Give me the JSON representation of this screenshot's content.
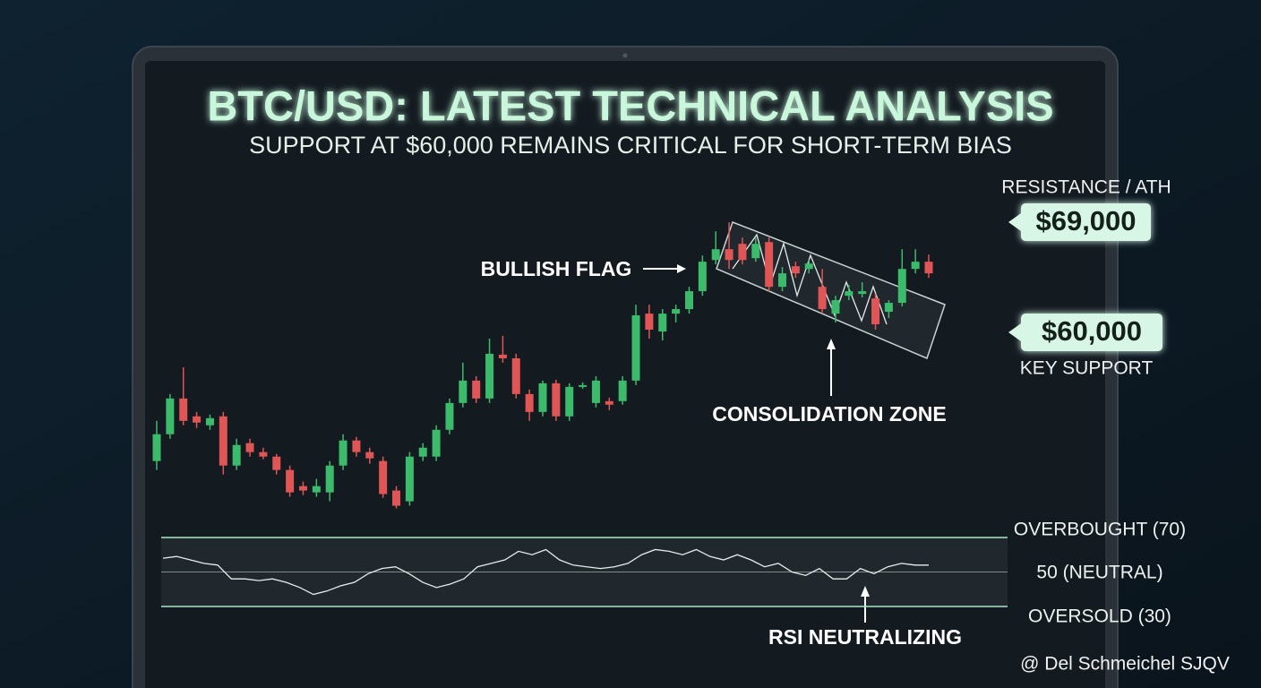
{
  "chart_data": {
    "type": "candlestick",
    "title": "BTC/USD: LATEST TECHNICAL ANALYSIS",
    "subtitle": "SUPPORT AT $60,000 REMAINS CRITICAL FOR SHORT-TERM BIAS",
    "up_color": "#3dbb6c",
    "down_color": "#e05656",
    "open": [
      49490,
      51680,
      54600,
      53140,
      52410,
      53140,
      49120,
      50950,
      50220,
      49850,
      48760,
      47440,
      46930,
      46930,
      49120,
      51170,
      50220,
      49490,
      47080,
      46200,
      49850,
      49850,
      52040,
      54230,
      56060,
      54600,
      58180,
      57880,
      54960,
      53500,
      55840,
      53140,
      55550,
      54230,
      54380,
      54380,
      56060,
      61530,
      60070,
      61530,
      61900,
      63360,
      65910,
      66790,
      67230,
      66060,
      67370,
      63720,
      65400,
      65180,
      63720,
      61530,
      62990,
      63140,
      62770,
      61680,
      62410,
      65180,
      65770
    ],
    "high": [
      52770,
      54960,
      57150,
      53500,
      53280,
      53500,
      51310,
      51310,
      50580,
      50070,
      49120,
      47810,
      48030,
      49490,
      51680,
      51460,
      50580,
      49850,
      47440,
      50220,
      50950,
      52410,
      54600,
      57520,
      56420,
      59490,
      59710,
      58250,
      55330,
      56060,
      56130,
      55840,
      55910,
      56420,
      54670,
      56420,
      62260,
      62260,
      61900,
      62260,
      63720,
      66280,
      68250,
      68980,
      67740,
      67740,
      67740,
      65330,
      65770,
      65910,
      65180,
      62990,
      63870,
      64090,
      63140,
      62630,
      66790,
      66790,
      66350
    ],
    "low": [
      48760,
      51310,
      52410,
      52190,
      52040,
      48390,
      48760,
      49850,
      49630,
      48390,
      46570,
      46710,
      46570,
      46200,
      48760,
      49850,
      49270,
      46490,
      45620,
      45840,
      49490,
      49490,
      51680,
      53870,
      54230,
      54230,
      57520,
      54600,
      52770,
      53140,
      52770,
      52770,
      55400,
      53870,
      53650,
      54090,
      55690,
      59490,
      59340,
      60800,
      61530,
      62990,
      65550,
      65180,
      65550,
      65770,
      63360,
      63360,
      64450,
      64820,
      61530,
      60800,
      62630,
      62850,
      60220,
      61170,
      62120,
      64820,
      64450
    ],
    "close": [
      51680,
      54600,
      52770,
      52630,
      52990,
      49120,
      50800,
      50220,
      49850,
      48760,
      46930,
      47080,
      47440,
      49120,
      51170,
      50220,
      49710,
      46790,
      45840,
      49850,
      50580,
      52040,
      54230,
      56060,
      54600,
      58250,
      57880,
      54960,
      53500,
      55840,
      53140,
      55550,
      55690,
      56060,
      54090,
      56060,
      61390,
      60220,
      61530,
      61900,
      63360,
      65770,
      66790,
      65910,
      65910,
      67230,
      63720,
      64820,
      64820,
      65620,
      61900,
      62630,
      63360,
      63360,
      60660,
      62410,
      65180,
      65770,
      64820
    ],
    "levels": [
      {
        "name": "RESISTANCE / ATH",
        "value": 69000,
        "label": "$69,000"
      },
      {
        "name": "KEY SUPPORT",
        "value": 60000,
        "label": "$60,000"
      }
    ],
    "annotations": [
      "BULLISH FLAG",
      "CONSOLIDATION ZONE"
    ],
    "rsi": {
      "values": [
        58,
        59,
        57,
        55,
        54,
        46,
        46,
        45,
        46,
        44,
        41,
        37,
        39,
        42,
        44,
        49,
        52,
        53,
        49,
        44,
        41,
        43,
        46,
        53,
        55,
        57,
        62,
        60,
        63,
        57,
        54,
        53,
        52,
        53,
        55,
        60,
        63,
        62,
        60,
        63,
        59,
        57,
        60,
        57,
        53,
        55,
        50,
        48,
        52,
        46,
        46,
        52,
        49,
        53,
        55,
        54,
        54
      ],
      "levels": [
        {
          "value": 70,
          "label": "OVERBOUGHT (70)"
        },
        {
          "value": 50,
          "label": "50 (NEUTRAL)"
        },
        {
          "value": 30,
          "label": "OVERSOLD (30)"
        }
      ],
      "annotation": "RSI NEUTRALIZING"
    }
  },
  "watermark": "@ Del Schmeichel SJQV"
}
